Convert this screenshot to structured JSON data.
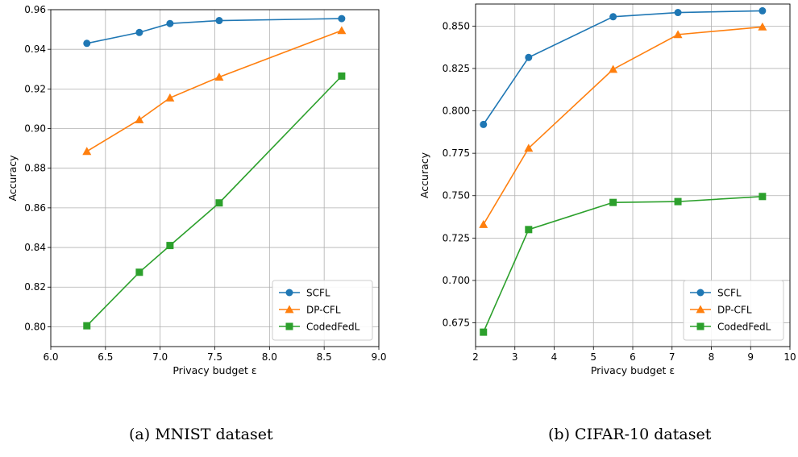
{
  "captions": [
    "(a)  MNIST  dataset",
    "(b)  CIFAR-10  dataset"
  ],
  "legend": [
    "SCFL",
    "DP-CFL",
    "CodedFedL"
  ],
  "colors": {
    "SCFL": "#1f77b4",
    "DP-CFL": "#ff7f0e",
    "CodedFedL": "#2ca02c"
  },
  "chart_data": [
    {
      "type": "line",
      "title": "",
      "xlabel": "Privacy budget ε",
      "ylabel": "Accuracy",
      "xlim": [
        6.0,
        9.0
      ],
      "ylim": [
        0.79,
        0.96
      ],
      "xticks": [
        "6.0",
        "6.5",
        "7.0",
        "7.5",
        "8.0",
        "8.5",
        "9.0"
      ],
      "yticks": [
        "0.80",
        "0.82",
        "0.84",
        "0.86",
        "0.88",
        "0.90",
        "0.92",
        "0.94",
        "0.96"
      ],
      "grid": true,
      "legend_position": "lower-right",
      "series": [
        {
          "name": "SCFL",
          "marker": "circle",
          "x": [
            6.33,
            6.81,
            7.09,
            7.54,
            8.66
          ],
          "y": [
            0.943,
            0.9485,
            0.953,
            0.9545,
            0.9555
          ]
        },
        {
          "name": "DP-CFL",
          "marker": "triangle",
          "x": [
            6.33,
            6.81,
            7.09,
            7.54,
            8.66
          ],
          "y": [
            0.8885,
            0.9045,
            0.9155,
            0.926,
            0.9495
          ]
        },
        {
          "name": "CodedFedL",
          "marker": "square",
          "x": [
            6.33,
            6.81,
            7.09,
            7.54,
            8.66
          ],
          "y": [
            0.8005,
            0.8275,
            0.841,
            0.8625,
            0.9265
          ]
        }
      ]
    },
    {
      "type": "line",
      "title": "",
      "xlabel": "Privacy budget ε",
      "ylabel": "Accuracy",
      "xlim": [
        2,
        10
      ],
      "ylim": [
        0.661,
        0.863
      ],
      "xticks": [
        "2",
        "3",
        "4",
        "5",
        "6",
        "7",
        "8",
        "9",
        "10"
      ],
      "yticks": [
        "0.675",
        "0.700",
        "0.725",
        "0.750",
        "0.775",
        "0.800",
        "0.825",
        "0.850"
      ],
      "grid": true,
      "legend_position": "lower-right",
      "series": [
        {
          "name": "SCFL",
          "marker": "circle",
          "x": [
            2.2,
            3.35,
            5.5,
            7.15,
            9.3
          ],
          "y": [
            0.792,
            0.8315,
            0.8555,
            0.858,
            0.859
          ]
        },
        {
          "name": "DP-CFL",
          "marker": "triangle",
          "x": [
            2.2,
            3.35,
            5.5,
            7.15,
            9.3
          ],
          "y": [
            0.733,
            0.778,
            0.8245,
            0.845,
            0.8495
          ]
        },
        {
          "name": "CodedFedL",
          "marker": "square",
          "x": [
            2.2,
            3.35,
            5.5,
            7.15,
            9.3
          ],
          "y": [
            0.6695,
            0.73,
            0.746,
            0.7465,
            0.7495
          ]
        }
      ]
    }
  ]
}
